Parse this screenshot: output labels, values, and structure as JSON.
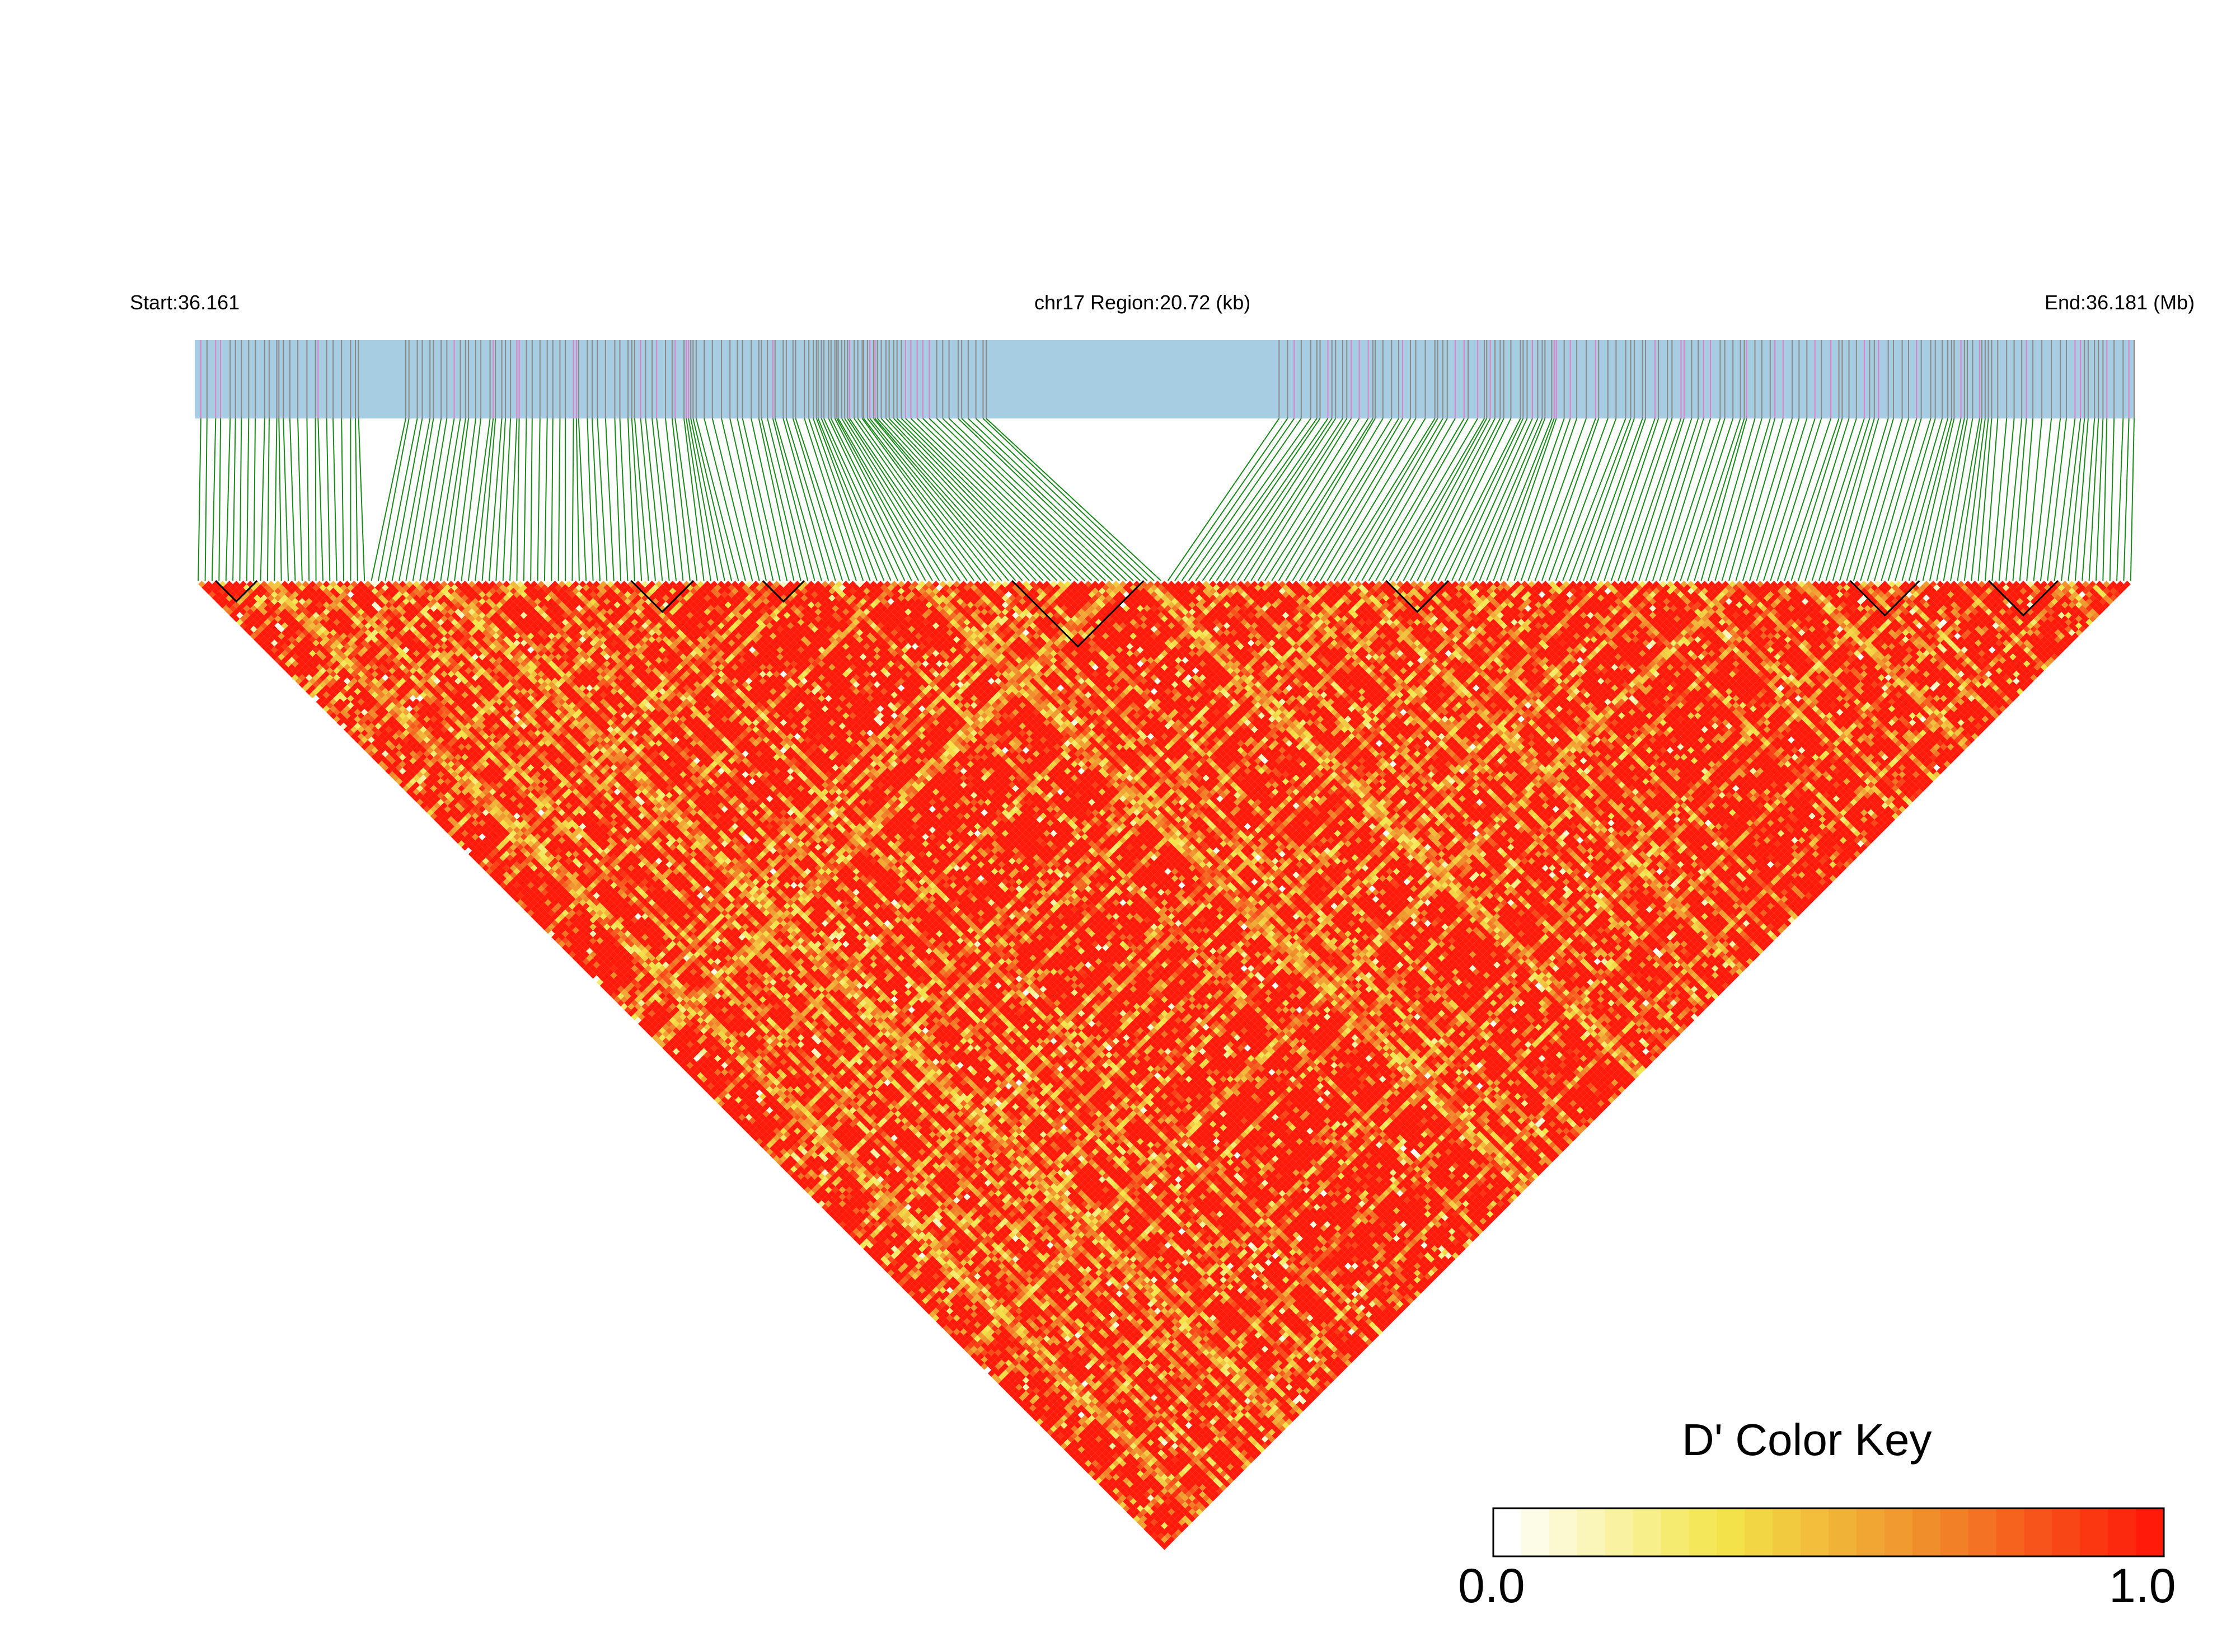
{
  "header": {
    "start": "Start:36.161",
    "region": "chr17 Region:20.72 (kb)",
    "end": "End:36.181 (Mb)"
  },
  "color_key": {
    "title": "D' Color Key",
    "min_label": "0.0",
    "max_label": "1.0",
    "colors": [
      "#ffffff",
      "#f3e64a",
      "#f08a2a",
      "#ff1a0a"
    ]
  },
  "colors": {
    "track_bg": "#a6cde2",
    "snp_tick_gray": "#8a8a8a",
    "snp_tick_pink": "#e07ec8",
    "connector": "#1a8a1a",
    "block_outline": "#000000"
  },
  "chart_data": {
    "type": "heatmap",
    "title": "",
    "chromosome": "chr17",
    "start_mb": 36.161,
    "end_mb": 36.181,
    "region_kb": 20.72,
    "metric": "D'",
    "value_range": [
      0.0,
      1.0
    ],
    "snp_count": 280,
    "snp_positions_note": "dense irregular SNP positions across region",
    "dominant_value": 1.0
  }
}
